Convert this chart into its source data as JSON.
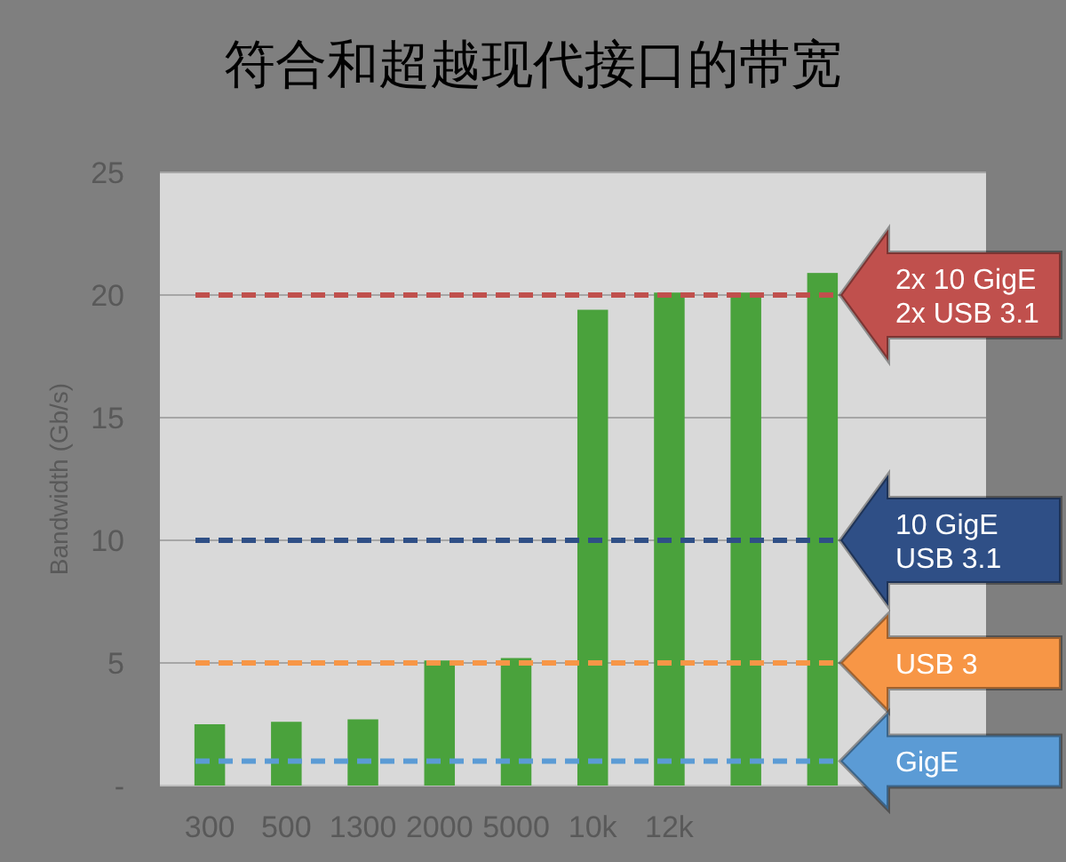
{
  "chart_data": {
    "type": "bar",
    "title": "符合和超越现代接口的带宽",
    "ylabel": "Bandwidth (Gb/s)",
    "categories": [
      "300",
      "500",
      "1300",
      "2000",
      "5000",
      "10k",
      "12k",
      null,
      null
    ],
    "values": [
      2.5,
      2.6,
      2.7,
      5.1,
      5.2,
      19.4,
      20.1,
      20.1,
      20.9
    ],
    "color": "#4aa23c",
    "ylim": [
      0,
      25
    ],
    "yticks": [
      {
        "value": 0,
        "label": "-"
      },
      5,
      10,
      15,
      20,
      25
    ],
    "grid": "y",
    "ref_lines": [
      {
        "axis": "y",
        "value": 20,
        "label": "2x 10 GigE\n2x USB 3.1",
        "color": "#c0504d",
        "line_style": "dashed"
      },
      {
        "axis": "y",
        "value": 10,
        "label": "10 GigE\nUSB 3.1",
        "color": "#2f4f86",
        "line_style": "dashed"
      },
      {
        "axis": "y",
        "value": 5,
        "label": "USB 3",
        "color": "#f79646",
        "line_style": "dashed"
      },
      {
        "axis": "y",
        "value": 1,
        "label": "GigE",
        "color": "#5b9bd5",
        "line_style": "dashed"
      }
    ]
  }
}
